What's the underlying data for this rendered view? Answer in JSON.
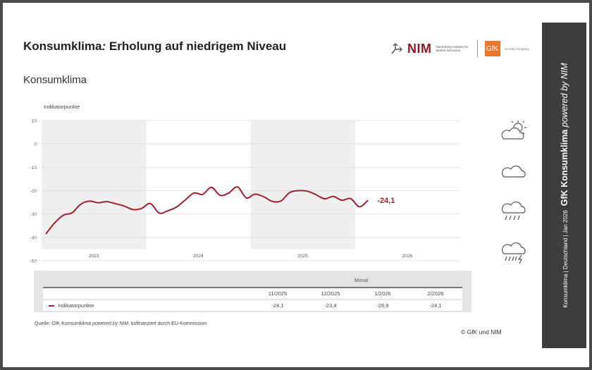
{
  "header": {
    "title_main": "Konsumklima",
    "title_colon": ":",
    "title_rest": " Erholung auf niedrigem Niveau",
    "subtitle": "Konsumklima"
  },
  "logos": {
    "nim": "NIM",
    "nim_sub": "Nuremberg Institute for Market Decisions",
    "gfk": "GfK",
    "gfk_sub": "An NIQ Company"
  },
  "sidebar": {
    "small": "Konsumklima | Deutschland | Jan 2026",
    "big": "GfK Konsumklima",
    "big_italic": "powered by NIM"
  },
  "weather_icons": [
    "sun-behind-cloud-icon",
    "cloud-icon",
    "rain-cloud-icon",
    "thunderstorm-icon"
  ],
  "chart_data": {
    "type": "line",
    "ylabel": "Indikatorpunkte",
    "ylim": [
      -50,
      10
    ],
    "yticks": [
      10,
      0,
      -10,
      -20,
      -30,
      -40,
      -50
    ],
    "year_labels": [
      "2023",
      "2024",
      "2025",
      "2026"
    ],
    "grid": true,
    "line_color": "#a01f33",
    "last_value_label": "-24,1",
    "series": [
      {
        "name": "Indikatorpunkte",
        "x": [
          "1/2023",
          "2/2023",
          "3/2023",
          "4/2023",
          "5/2023",
          "6/2023",
          "7/2023",
          "8/2023",
          "9/2023",
          "10/2023",
          "11/2023",
          "12/2023",
          "1/2024",
          "2/2024",
          "3/2024",
          "4/2024",
          "5/2024",
          "6/2024",
          "7/2024",
          "8/2024",
          "9/2024",
          "10/2024",
          "11/2024",
          "12/2024",
          "1/2025",
          "2/2025",
          "3/2025",
          "4/2025",
          "5/2025",
          "6/2025",
          "7/2025",
          "8/2025",
          "9/2025",
          "10/2025",
          "11/2025",
          "12/2025",
          "1/2026",
          "2/2026"
        ],
        "values": [
          -38.5,
          -33.8,
          -30.5,
          -29.5,
          -25.8,
          -24.5,
          -25.2,
          -24.7,
          -25.6,
          -26.6,
          -28.1,
          -27.6,
          -25.5,
          -29.6,
          -28.6,
          -27.0,
          -24.0,
          -21.0,
          -21.6,
          -18.6,
          -22.0,
          -21.0,
          -18.4,
          -23.1,
          -21.5,
          -22.6,
          -24.6,
          -24.4,
          -20.8,
          -20.0,
          -20.2,
          -21.7,
          -23.5,
          -22.5,
          -24.1,
          -23.4,
          -26.9,
          -24.1
        ]
      }
    ]
  },
  "table": {
    "group_header": "Monat",
    "columns": [
      "11/2025",
      "12/2025",
      "1/2026",
      "2/2026"
    ],
    "row_label": "Indikatorpunkte",
    "values": [
      "-24,1",
      "-23,4",
      "-26,9",
      "-24,1"
    ]
  },
  "footer": {
    "source_a": "Quelle: GfK Konsumklima ",
    "source_italic": "powered by NIM",
    "source_b": ", kofinanziert durch EU-Kommission",
    "copyright": "© GfK und NIM"
  }
}
